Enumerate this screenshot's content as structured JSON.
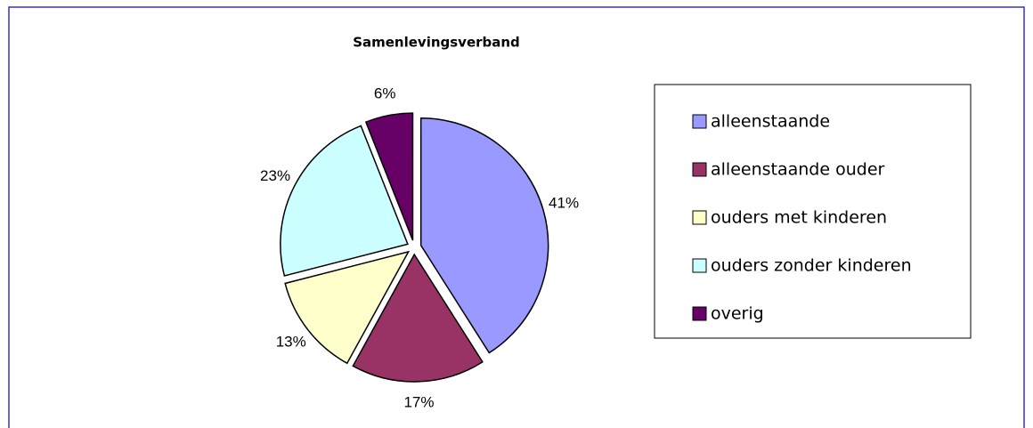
{
  "chart_data": {
    "type": "pie",
    "title": "Samenlevingsverband",
    "categories": [
      "alleenstaande",
      "alleenstaande ouder",
      "ouders met kinderen",
      "ouders zonder kinderen",
      "overig"
    ],
    "values": [
      41,
      17,
      13,
      23,
      6
    ],
    "value_labels": [
      "41%",
      "17%",
      "13%",
      "23%",
      "6%"
    ],
    "colors": [
      "#9999ff",
      "#993366",
      "#ffffcc",
      "#ccffff",
      "#660066"
    ],
    "legend": "right"
  }
}
